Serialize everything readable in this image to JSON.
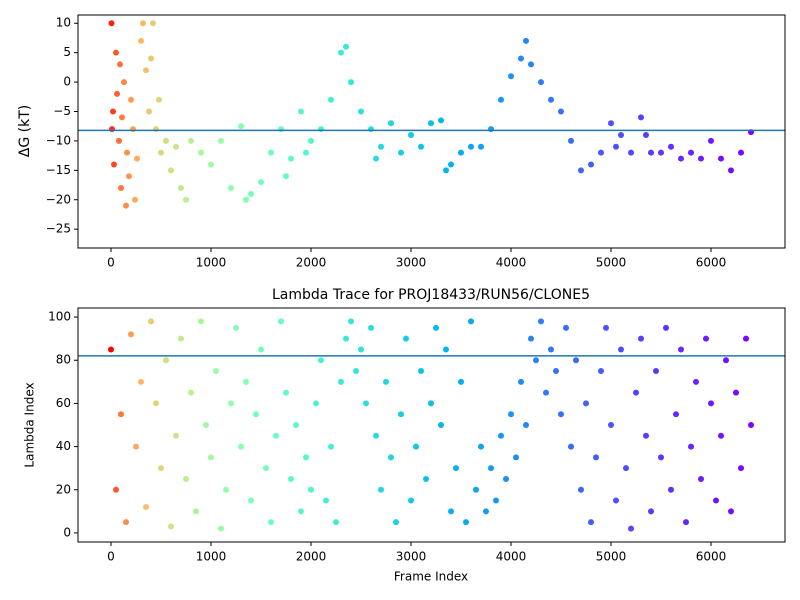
{
  "chart_data": [
    {
      "type": "scatter",
      "ylabel": "ΔG (kT)",
      "colormap": "rainbow_r",
      "hline": -8.2,
      "hline_color": "#1f77b4",
      "xlim": [
        -330,
        6740
      ],
      "ylim": [
        -28.2,
        11.4
      ],
      "xticks": [
        0,
        1000,
        2000,
        3000,
        4000,
        5000,
        6000
      ],
      "yticks": [
        {
          "value": -25,
          "label": "−25"
        },
        {
          "value": -20,
          "label": "−20"
        },
        {
          "value": -15,
          "label": "−15"
        },
        {
          "value": -10,
          "label": "−10"
        },
        {
          "value": -5,
          "label": "−5"
        },
        0,
        5,
        10
      ],
      "x": [
        5,
        10,
        20,
        30,
        50,
        60,
        80,
        90,
        100,
        110,
        130,
        150,
        160,
        180,
        200,
        220,
        240,
        260,
        300,
        320,
        350,
        380,
        400,
        420,
        450,
        480,
        500,
        550,
        600,
        650,
        700,
        750,
        800,
        900,
        1000,
        1100,
        1200,
        1300,
        1350,
        1400,
        1500,
        1600,
        1700,
        1750,
        1800,
        1900,
        1950,
        2000,
        2100,
        2200,
        2300,
        2350,
        2400,
        2500,
        2600,
        2650,
        2700,
        2800,
        2900,
        3000,
        3100,
        3200,
        3300,
        3350,
        3400,
        3500,
        3600,
        3700,
        3800,
        3900,
        4000,
        4100,
        4150,
        4200,
        4300,
        4400,
        4500,
        4600,
        4700,
        4800,
        4900,
        5000,
        5050,
        5100,
        5200,
        5300,
        5350,
        5400,
        5500,
        5600,
        5700,
        5800,
        5900,
        6000,
        6100,
        6200,
        6300,
        6400
      ],
      "values": [
        10,
        -8,
        -5,
        -14,
        5,
        -2,
        -10,
        3,
        -18,
        -6,
        0,
        -21,
        -12,
        -16,
        -3,
        -8,
        -20,
        -13,
        7,
        10,
        2,
        -5,
        4,
        10,
        -8,
        -3,
        -12,
        -10,
        -15,
        -11,
        -18,
        -20,
        -10,
        -12,
        -14,
        -10,
        -18,
        -7.5,
        -20,
        -19,
        -17,
        -12,
        -8,
        -16,
        -13,
        -5,
        -12,
        -10,
        -8,
        -3,
        5,
        6,
        0,
        -5,
        -8,
        -13,
        -11,
        -7,
        -12,
        -9,
        -11,
        -7,
        -6.5,
        -15,
        -14,
        -12,
        -11,
        -11,
        -8,
        -3,
        1,
        4,
        7,
        3,
        0,
        -3,
        -5,
        -10,
        -15,
        -14,
        -12,
        -7,
        -11,
        -9,
        -12,
        -6,
        -9,
        -12,
        -12,
        -11,
        -13,
        -12,
        -13,
        -10,
        -13,
        -15,
        -12,
        -8.5
      ]
    },
    {
      "type": "scatter",
      "title": "Lambda Trace for PROJ18433/RUN56/CLONE5",
      "xlabel": "Frame Index",
      "ylabel": "Lambda Index",
      "colormap": "rainbow_r",
      "hline": 82,
      "hline_color": "#1f77b4",
      "xlim": [
        -330,
        6740
      ],
      "ylim": [
        -4.2,
        104.2
      ],
      "xticks": [
        0,
        1000,
        2000,
        3000,
        4000,
        5000,
        6000
      ],
      "yticks": [
        0,
        20,
        40,
        60,
        80,
        100
      ],
      "x": [
        0,
        50,
        100,
        150,
        200,
        250,
        300,
        350,
        400,
        450,
        500,
        550,
        600,
        650,
        700,
        750,
        800,
        850,
        900,
        950,
        1000,
        1050,
        1100,
        1150,
        1200,
        1250,
        1300,
        1350,
        1400,
        1450,
        1500,
        1550,
        1600,
        1650,
        1700,
        1750,
        1800,
        1850,
        1900,
        1950,
        2000,
        2050,
        2100,
        2150,
        2200,
        2250,
        2300,
        2350,
        2400,
        2450,
        2500,
        2550,
        2600,
        2650,
        2700,
        2750,
        2800,
        2850,
        2900,
        2950,
        3000,
        3050,
        3100,
        3150,
        3200,
        3250,
        3300,
        3350,
        3400,
        3450,
        3500,
        3550,
        3600,
        3650,
        3700,
        3750,
        3800,
        3850,
        3900,
        3950,
        4000,
        4050,
        4100,
        4150,
        4200,
        4250,
        4300,
        4350,
        4400,
        4450,
        4500,
        4550,
        4600,
        4650,
        4700,
        4750,
        4800,
        4850,
        4900,
        4950,
        5000,
        5050,
        5100,
        5150,
        5200,
        5250,
        5300,
        5350,
        5400,
        5450,
        5500,
        5550,
        5600,
        5650,
        5700,
        5750,
        5800,
        5850,
        5900,
        5950,
        6000,
        6050,
        6100,
        6150,
        6200,
        6250,
        6300,
        6350,
        6400
      ],
      "values": [
        85,
        20,
        55,
        5,
        92,
        40,
        70,
        12,
        98,
        60,
        30,
        80,
        3,
        45,
        90,
        25,
        65,
        10,
        98,
        50,
        35,
        75,
        2,
        20,
        60,
        95,
        40,
        70,
        15,
        55,
        85,
        30,
        5,
        45,
        98,
        65,
        25,
        50,
        10,
        35,
        20,
        60,
        80,
        15,
        40,
        5,
        70,
        90,
        98,
        75,
        85,
        60,
        95,
        45,
        20,
        70,
        35,
        5,
        55,
        90,
        15,
        40,
        75,
        25,
        60,
        95,
        50,
        85,
        10,
        30,
        70,
        5,
        98,
        20,
        40,
        10,
        30,
        15,
        45,
        25,
        55,
        35,
        70,
        50,
        90,
        80,
        98,
        65,
        85,
        75,
        55,
        95,
        40,
        80,
        20,
        60,
        5,
        35,
        75,
        95,
        50,
        15,
        85,
        30,
        2,
        65,
        90,
        45,
        10,
        75,
        35,
        95,
        20,
        55,
        85,
        5,
        40,
        70,
        25,
        90,
        60,
        15,
        45,
        80,
        10,
        65,
        30,
        90,
        50
      ]
    }
  ]
}
